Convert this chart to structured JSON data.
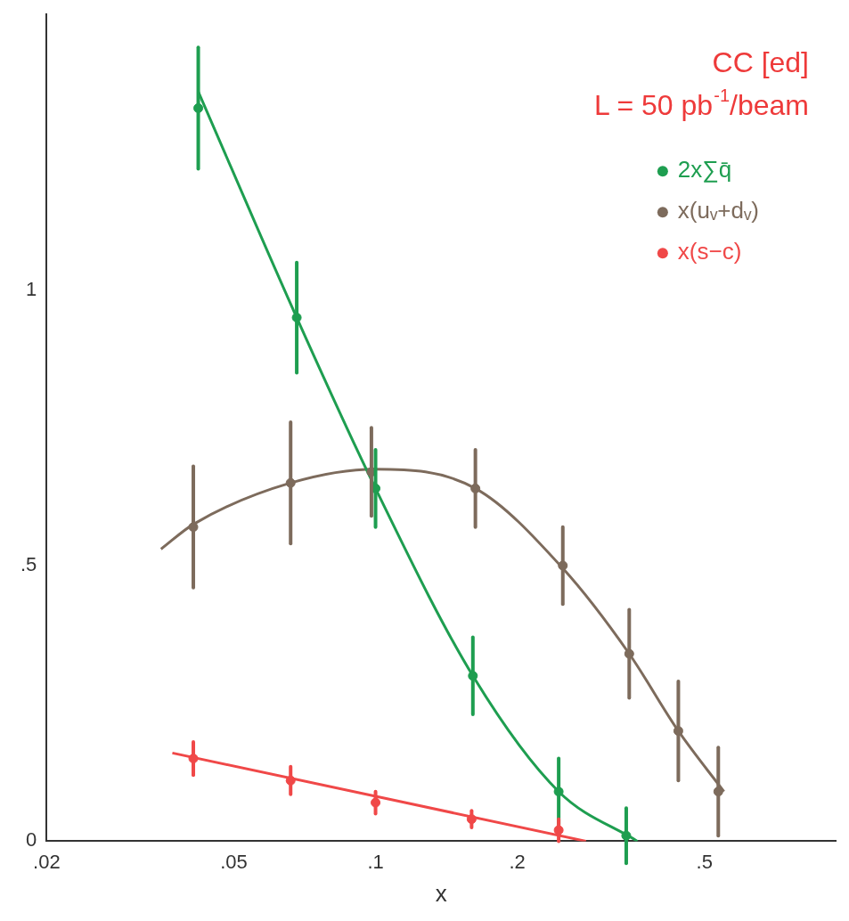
{
  "chart_data": {
    "type": "scatter",
    "xlabel": "x",
    "log": "x",
    "grid": false,
    "marker": "circle",
    "legend": "top right",
    "annotations": [
      "CC [ed]",
      "L = 50 pb$^{-1}$/beam"
    ],
    "xlim": [
      0.02,
      0.95
    ],
    "xticks": [
      {
        "value": 0.02,
        "label": ".02"
      },
      {
        "value": 0.05,
        "label": ".05"
      },
      {
        "value": 0.1,
        "label": ".1"
      },
      {
        "value": 0.2,
        "label": ".2"
      },
      {
        "value": 0.5,
        "label": ".5"
      }
    ],
    "ylim": [
      0,
      1.5
    ],
    "yticks": [
      {
        "value": 0,
        "label": "0"
      },
      {
        "value": 0.5,
        "label": ".5"
      },
      {
        "value": 1,
        "label": "1"
      }
    ],
    "series": [
      {
        "name": "2x∑q̄",
        "color": "#1e9e50",
        "x": [
          0.042,
          0.068,
          0.1,
          0.161,
          0.245,
          0.341
        ],
        "values": [
          1.33,
          0.95,
          0.64,
          0.3,
          0.09,
          0.01
        ],
        "errors": [
          0.11,
          0.1,
          0.07,
          0.07,
          0.06,
          0.05
        ]
      },
      {
        "name": "x(uᵥ+dᵥ)",
        "color": "#7d6b5c",
        "x": [
          0.041,
          0.066,
          0.098,
          0.163,
          0.25,
          0.346,
          0.44,
          0.535
        ],
        "values": [
          0.57,
          0.65,
          0.67,
          0.64,
          0.5,
          0.34,
          0.2,
          0.09
        ],
        "errors": [
          0.11,
          0.11,
          0.08,
          0.07,
          0.07,
          0.08,
          0.09,
          0.08
        ]
      },
      {
        "name": "x(s−c)",
        "color": "#f04848",
        "x": [
          0.041,
          0.066,
          0.1,
          0.16,
          0.245
        ],
        "values": [
          0.15,
          0.11,
          0.07,
          0.04,
          0.02
        ],
        "errors": [
          0.03,
          0.025,
          0.02,
          0.015,
          0.02
        ]
      },
      {
        "type": "line",
        "marker": "none",
        "color": "#1e9e50",
        "x": [
          0.042,
          0.068,
          0.1,
          0.161,
          0.245,
          0.36
        ],
        "values": [
          1.36,
          0.95,
          0.64,
          0.3,
          0.09,
          0.0
        ]
      },
      {
        "type": "line",
        "marker": "none",
        "color": "#7d6b5c",
        "x": [
          0.035,
          0.041,
          0.066,
          0.1,
          0.163,
          0.25,
          0.346,
          0.44,
          0.55
        ],
        "values": [
          0.53,
          0.575,
          0.65,
          0.675,
          0.64,
          0.495,
          0.34,
          0.2,
          0.09
        ]
      },
      {
        "type": "line",
        "marker": "none",
        "color": "#f04848",
        "x": [
          0.037,
          0.28
        ],
        "values": [
          0.16,
          0.0
        ]
      }
    ]
  }
}
